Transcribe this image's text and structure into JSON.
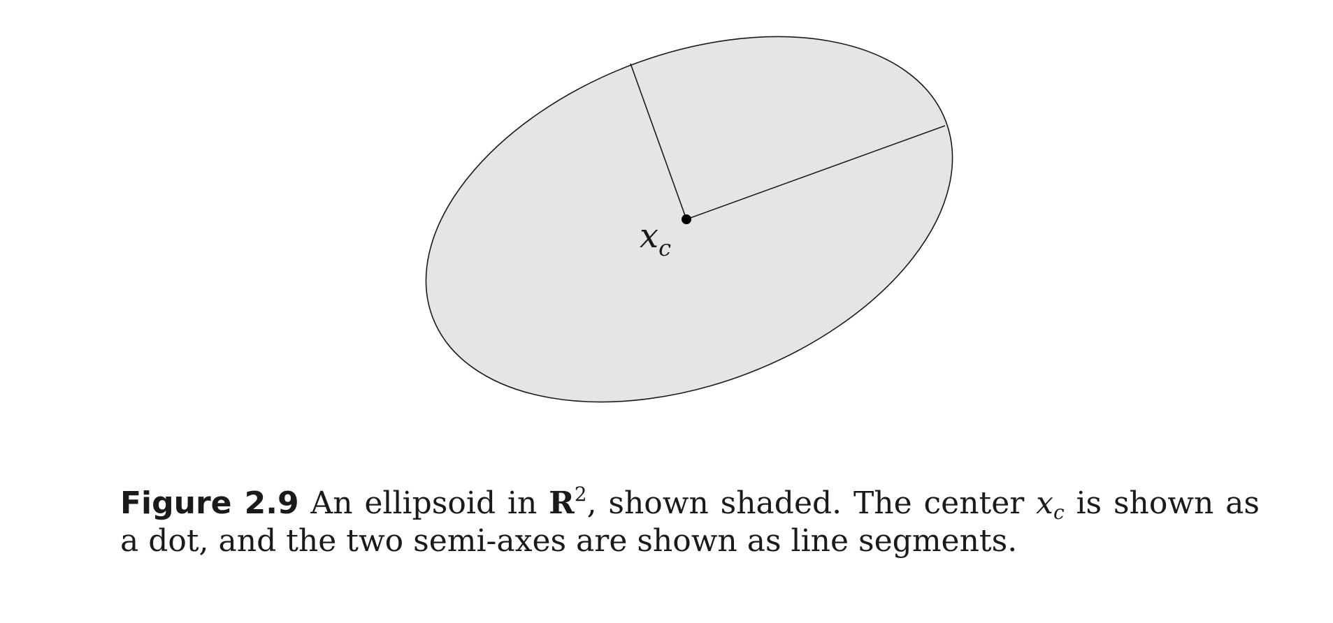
{
  "figure": {
    "center_label": {
      "base": "x",
      "subscript": "c"
    }
  },
  "caption": {
    "label": "Figure 2.9",
    "part1": " An ellipsoid in ",
    "space_symbol": "R",
    "space_exponent": "2",
    "part2": ", shown shaded.  The center ",
    "center_base": "x",
    "center_subscript": "c",
    "part3": " is shown as a dot, and the two semi-axes are shown as line segments."
  },
  "colors": {
    "ellipse_fill": "#e5e5e5",
    "ellipse_stroke": "#1a1a1a",
    "segment_stroke": "#1a1a1a",
    "dot_fill": "#000000"
  }
}
